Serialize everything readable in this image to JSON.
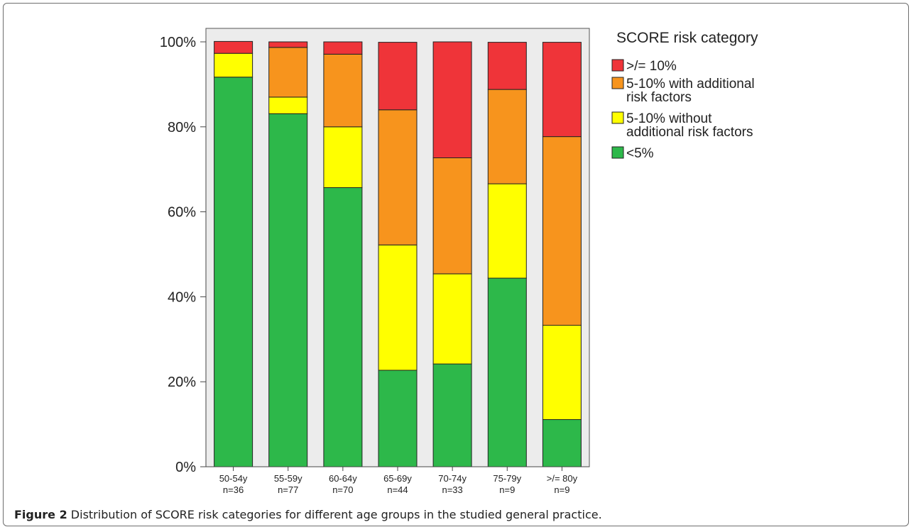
{
  "caption": {
    "label": "Figure 2",
    "text": "Distribution of SCORE risk categories for different age groups in the studied general practice."
  },
  "chart_data": {
    "type": "bar",
    "stacked": true,
    "categories": [
      "50-54y",
      "55-59y",
      "60-64y",
      "65-69y",
      "70-74y",
      "75-79y",
      ">/= 80y"
    ],
    "category_counts": [
      "n=36",
      "n=77",
      "n=70",
      "n=44",
      "n=33",
      "n=9",
      "n=9"
    ],
    "series": [
      {
        "name": "<5%",
        "color": "#2db84a",
        "values": [
          91.7,
          83.1,
          65.7,
          22.7,
          24.2,
          44.4,
          11.1
        ]
      },
      {
        "name": "5-10% without additional risk factors",
        "color": "#ffff00",
        "values": [
          5.6,
          3.9,
          14.3,
          29.5,
          21.2,
          22.2,
          22.2
        ]
      },
      {
        "name": "5-10% with additional risk factors",
        "color": "#f7941d",
        "values": [
          0.0,
          11.7,
          17.1,
          31.8,
          27.3,
          22.2,
          44.4
        ]
      },
      {
        "name": ">/= 10%",
        "color": "#ef3439",
        "values": [
          2.8,
          1.3,
          2.9,
          15.9,
          27.3,
          11.1,
          22.2
        ]
      }
    ],
    "y_ticks": [
      "0%",
      "20%",
      "40%",
      "60%",
      "80%",
      "100%"
    ],
    "ylim": [
      0,
      100
    ],
    "grid": false,
    "legend": {
      "title": "SCORE risk category",
      "position": "right",
      "entries": [
        {
          "label_lines": [
            ">/= 10%"
          ],
          "color": "#ef3439"
        },
        {
          "label_lines": [
            "5-10% with additional",
            "risk factors"
          ],
          "color": "#f7941d"
        },
        {
          "label_lines": [
            "5-10% without",
            "additional risk factors"
          ],
          "color": "#ffff00"
        },
        {
          "label_lines": [
            "<5%"
          ],
          "color": "#2db84a"
        }
      ]
    },
    "plot_background": "#ececec"
  }
}
